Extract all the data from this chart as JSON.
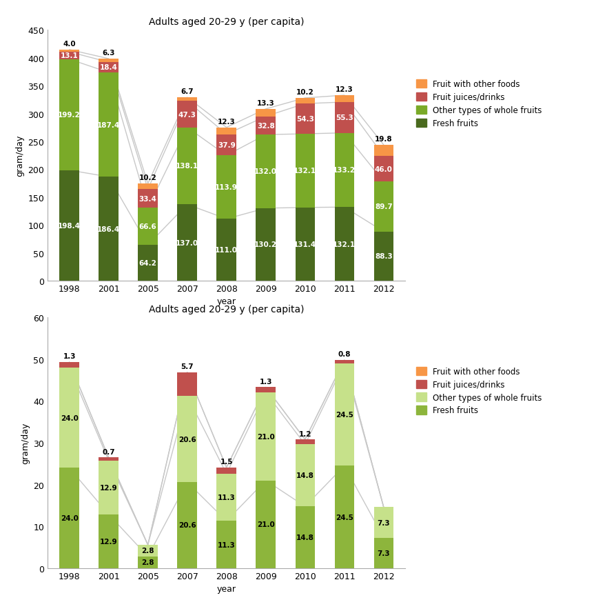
{
  "years": [
    "1998",
    "2001",
    "2005",
    "2007",
    "2008",
    "2009",
    "2010",
    "2011",
    "2012"
  ],
  "title1": "Adults aged 20-29 y (per capita)",
  "title2": "Adults aged 20-29 y (per capita)",
  "xlabel": "year",
  "ylabel": "gram/day",
  "chart1": {
    "fresh_fruits": [
      198.4,
      186.4,
      64.2,
      137.0,
      111.0,
      130.2,
      131.4,
      132.1,
      88.3
    ],
    "other_whole_fruits": [
      199.2,
      187.4,
      66.6,
      138.1,
      113.9,
      132.0,
      132.1,
      133.2,
      89.7
    ],
    "fruit_juices": [
      13.1,
      18.4,
      33.4,
      47.3,
      37.9,
      32.8,
      54.3,
      55.3,
      46.0
    ],
    "fruit_other_foods": [
      4.0,
      6.3,
      10.2,
      6.7,
      12.3,
      13.3,
      10.2,
      12.3,
      19.8
    ],
    "ylim": [
      0,
      450
    ],
    "yticks": [
      0,
      50,
      100,
      150,
      200,
      250,
      300,
      350,
      400,
      450
    ]
  },
  "chart2": {
    "fresh_fruits": [
      24.0,
      12.9,
      2.8,
      20.6,
      11.3,
      21.0,
      14.8,
      24.5,
      7.3
    ],
    "other_whole_fruits": [
      24.0,
      12.9,
      2.8,
      20.6,
      11.3,
      21.0,
      14.8,
      24.5,
      7.3
    ],
    "fruit_juices": [
      1.3,
      0.7,
      0.0,
      5.7,
      1.5,
      1.3,
      1.2,
      0.8,
      0.0
    ],
    "fruit_other_foods": [
      0.0,
      0.0,
      0.0,
      0.0,
      0.0,
      0.0,
      0.0,
      0.0,
      0.0
    ],
    "ylim": [
      0,
      60
    ],
    "yticks": [
      0,
      10,
      20,
      30,
      40,
      50,
      60
    ]
  },
  "colors_chart1": {
    "fresh_fruits": "#4a6a1e",
    "other_whole_fruits": "#7aaa28",
    "fruit_juices": "#c0504d",
    "fruit_other_foods": "#f79646"
  },
  "colors_chart2": {
    "fresh_fruits": "#8db53c",
    "other_whole_fruits": "#c6e18a",
    "fruit_juices": "#c0504d",
    "fruit_other_foods": "#f79646"
  },
  "legend_labels": {
    "fruit_other_foods": "Fruit with other foods",
    "fruit_juices": "Fruit juices/drinks",
    "other_whole_fruits": "Other types of whole fruits",
    "fresh_fruits": "Fresh fruits"
  },
  "line_color": "#c8c8c8",
  "bar_width": 0.5,
  "background_color": "#ffffff"
}
